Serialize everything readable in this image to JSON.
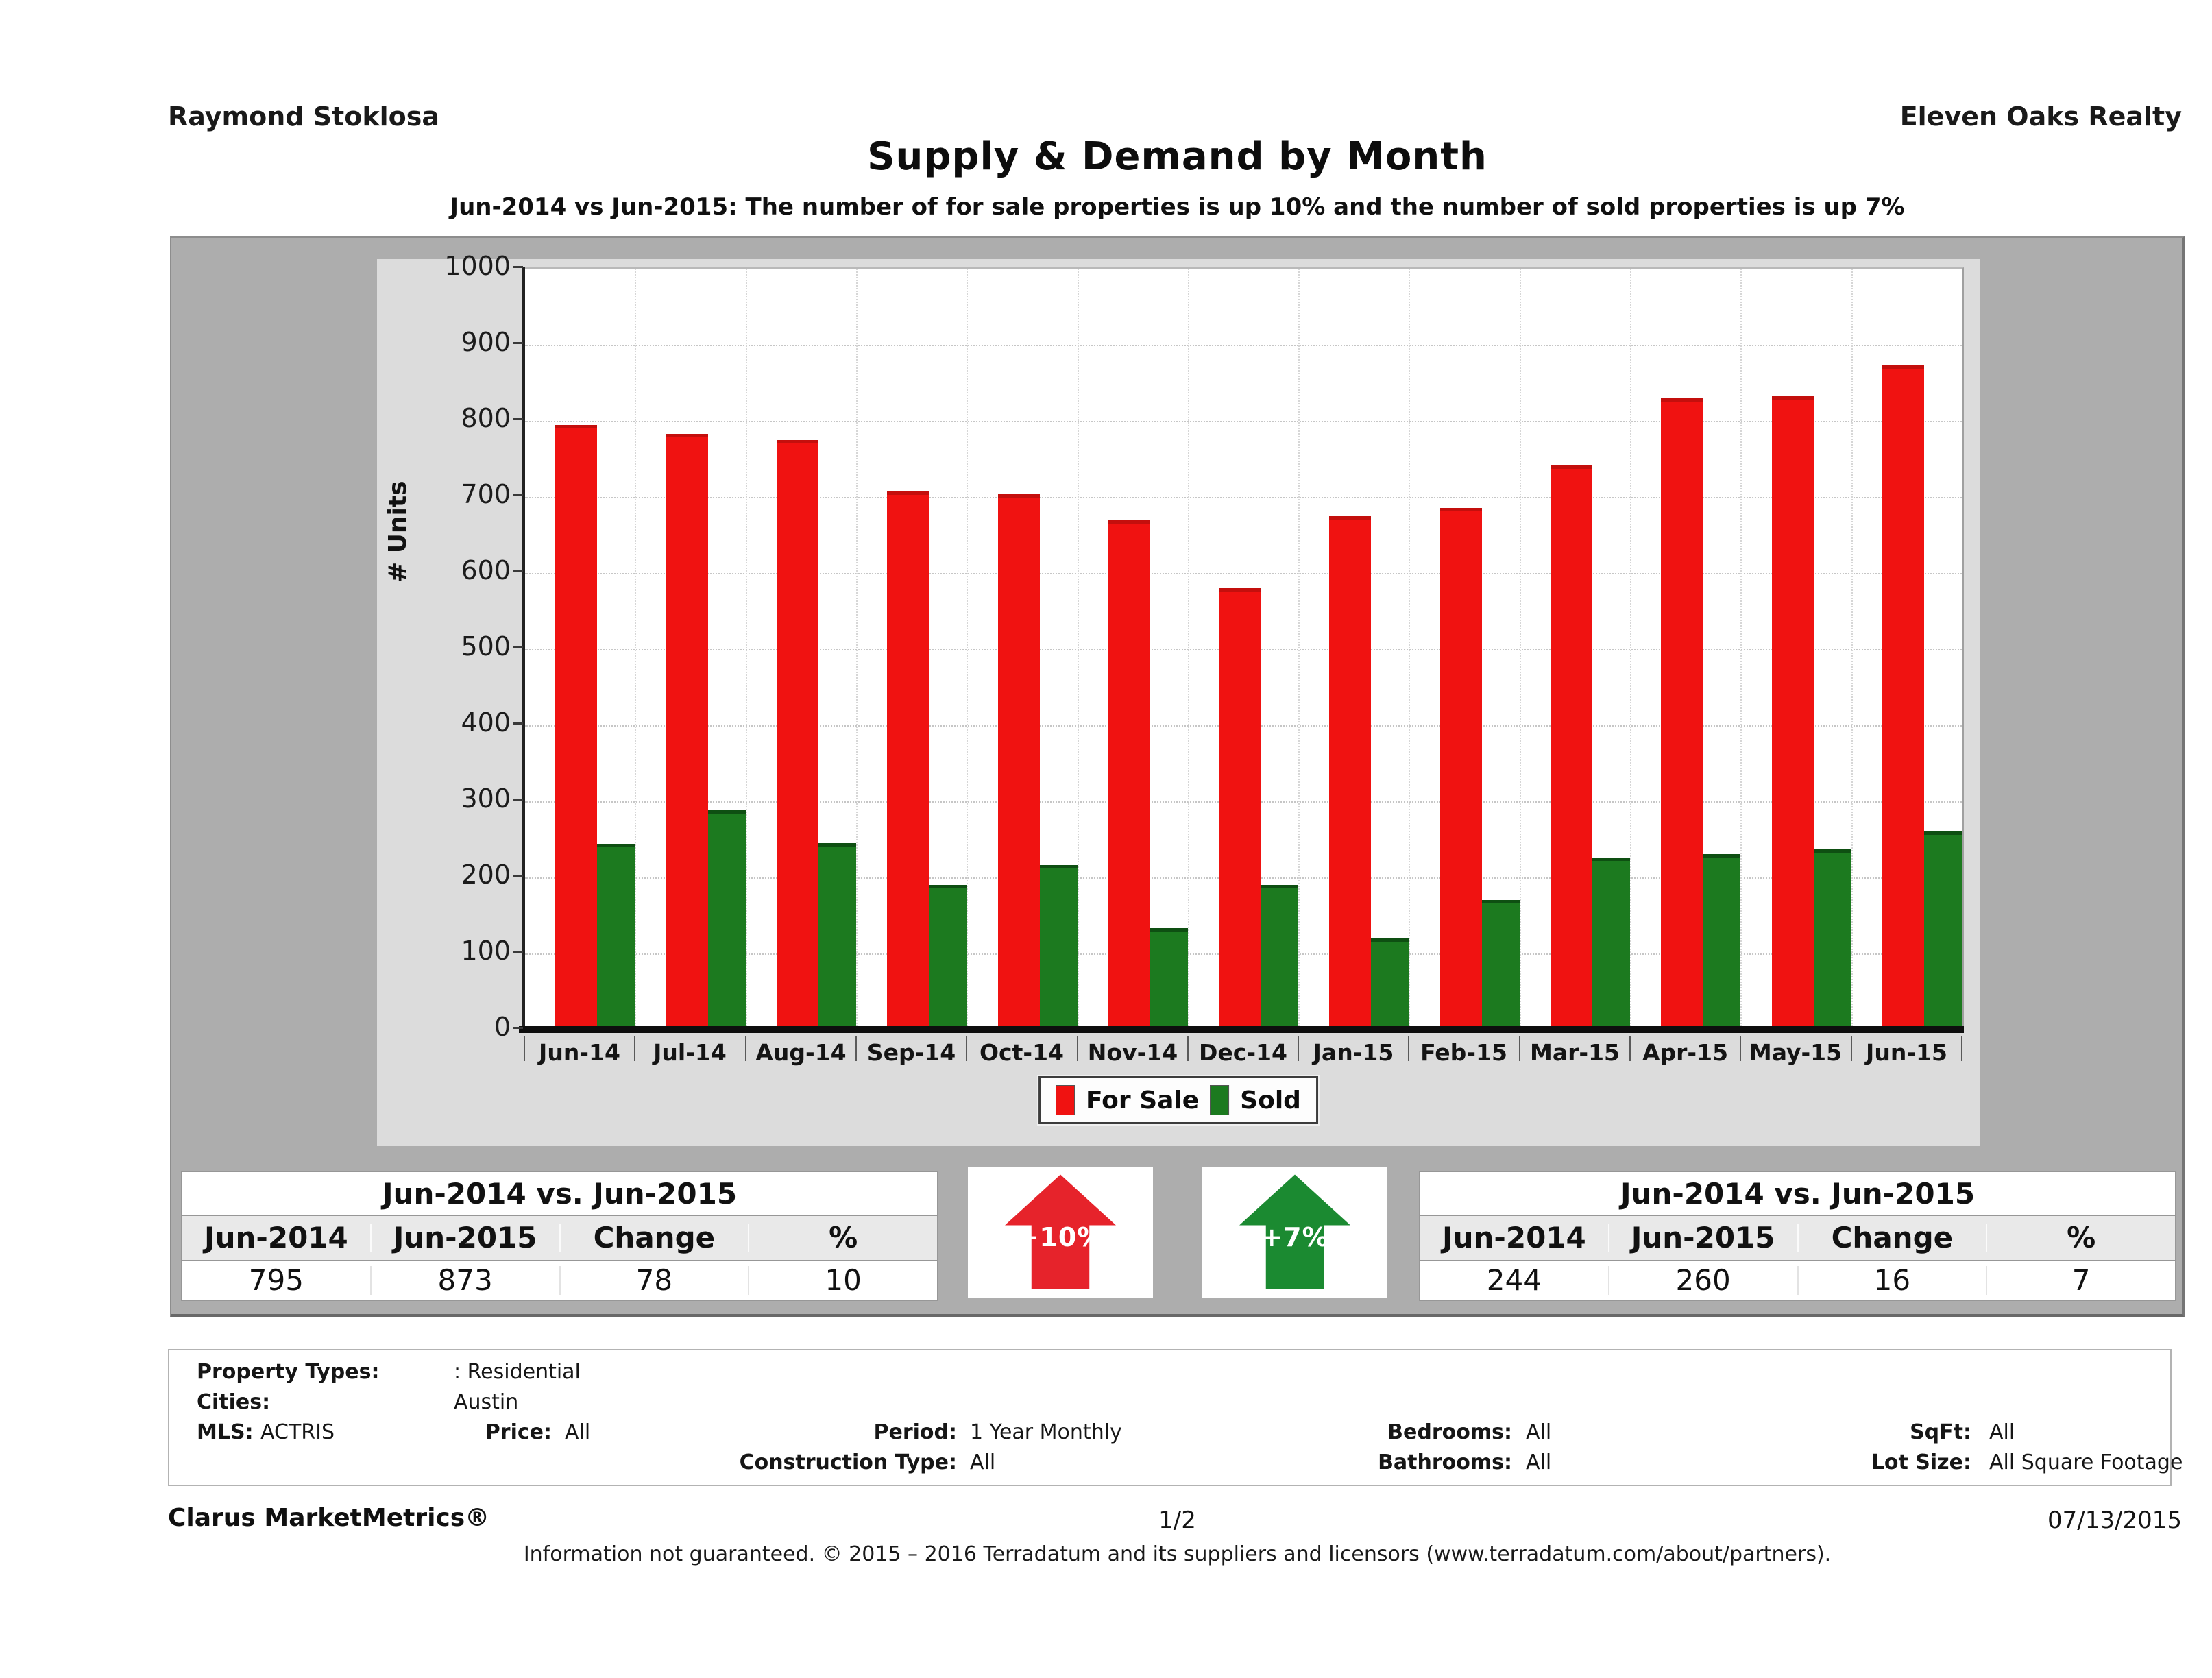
{
  "header": {
    "agent": "Raymond Stoklosa",
    "company": "Eleven Oaks Realty"
  },
  "title": "Supply & Demand by Month",
  "subtitle": "Jun-2014 vs Jun-2015: The number of for sale properties is up 10% and the number of sold properties is up 7%",
  "chart_data": {
    "type": "bar",
    "title": "Supply & Demand by Month",
    "categories": [
      "Jun-14",
      "Jul-14",
      "Aug-14",
      "Sep-14",
      "Oct-14",
      "Nov-14",
      "Dec-14",
      "Jan-15",
      "Feb-15",
      "Mar-15",
      "Apr-15",
      "May-15",
      "Jun-15"
    ],
    "series": [
      {
        "name": "For Sale",
        "color": "#f01211",
        "values": [
          795,
          783,
          775,
          707,
          704,
          669,
          580,
          675,
          686,
          741,
          830,
          832,
          873
        ]
      },
      {
        "name": "Sold",
        "color": "#1c7a1f",
        "values": [
          244,
          288,
          245,
          190,
          216,
          133,
          190,
          120,
          170,
          226,
          231,
          237,
          260
        ]
      }
    ],
    "xlabel": "",
    "ylabel": "# Units",
    "ylim": [
      0,
      1000
    ],
    "ytick_step": 100,
    "grid": true,
    "legend_position": "bottom"
  },
  "summary_left": {
    "title": "Jun-2014 vs. Jun-2015",
    "columns": [
      "Jun-2014",
      "Jun-2015",
      "Change",
      "%"
    ],
    "values": [
      "795",
      "873",
      "78",
      "10"
    ]
  },
  "summary_right": {
    "title": "Jun-2014 vs. Jun-2015",
    "columns": [
      "Jun-2014",
      "Jun-2015",
      "Change",
      "%"
    ],
    "values": [
      "244",
      "260",
      "16",
      "7"
    ]
  },
  "badges": [
    {
      "label": "+10%",
      "color": "#e6232b"
    },
    {
      "label": "+7%",
      "color": "#1b8a31"
    }
  ],
  "criteria": {
    "fields": [
      {
        "row": 0,
        "col": "main-wide",
        "label": "Property Types:",
        "value": ": Residential"
      },
      {
        "row": 1,
        "col": "main-wide",
        "label": "Cities:",
        "value": "Austin"
      },
      {
        "row": 2,
        "col": "main",
        "label": "MLS:",
        "value": "ACTRIS"
      },
      {
        "row": 2,
        "col": "price",
        "label": "Price:",
        "value": "All"
      },
      {
        "row": 2,
        "col": "period",
        "label": "Period:",
        "value": "1 Year Monthly"
      },
      {
        "row": 2,
        "col": "bedrooms",
        "label": "Bedrooms:",
        "value": "All"
      },
      {
        "row": 2,
        "col": "sqft",
        "label": "SqFt:",
        "value": "All"
      },
      {
        "row": 3,
        "col": "period",
        "label": "Construction Type:",
        "value": "All"
      },
      {
        "row": 3,
        "col": "bedrooms",
        "label": "Bathrooms:",
        "value": "All"
      },
      {
        "row": 3,
        "col": "sqft",
        "label": "Lot Size:",
        "value": "All Square Footage"
      }
    ]
  },
  "footer": {
    "brand": "Clarus MarketMetrics®",
    "page": "1/2",
    "date": "07/13/2015",
    "disclaimer": "Information not guaranteed. © 2015 – 2016 Terradatum and its suppliers and licensors (www.terradatum.com/about/partners)."
  }
}
